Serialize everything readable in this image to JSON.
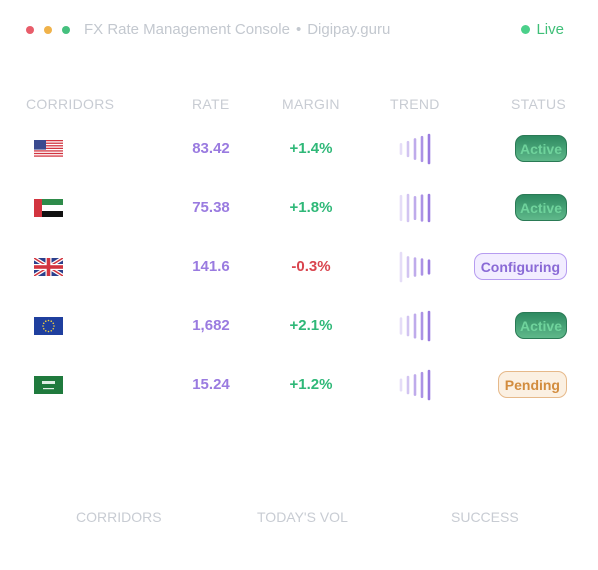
{
  "window": {
    "title": "FX Rate Management Console",
    "separator": "•",
    "domain": "Digipay.guru",
    "status": "Live"
  },
  "table": {
    "headers": {
      "corridors": "CORRIDORS",
      "rate": "RATE",
      "margin": "MARGIN",
      "trend": "TREND",
      "status": "STATUS"
    },
    "rows": [
      {
        "flag": "us-flag-icon",
        "rate": "83.42",
        "margin": "+1.4%",
        "margin_sign": "pos",
        "trend": [
          0.15,
          0.35,
          0.6,
          0.8,
          1.0
        ],
        "status": "Active"
      },
      {
        "flag": "uae-flag-icon",
        "rate": "75.38",
        "margin": "+1.8%",
        "margin_sign": "pos",
        "trend": [
          0.8,
          0.9,
          0.7,
          0.85,
          0.9
        ],
        "status": "Active"
      },
      {
        "flag": "uk-flag-icon",
        "rate": "141.6",
        "margin": "-0.3%",
        "margin_sign": "neg",
        "trend": [
          1.0,
          0.6,
          0.5,
          0.4,
          0.3
        ],
        "status": "Configuring"
      },
      {
        "flag": "eu-flag-icon",
        "rate": "1,682",
        "margin": "+2.1%",
        "margin_sign": "pos",
        "trend": [
          0.4,
          0.55,
          0.75,
          0.9,
          1.0
        ],
        "status": "Active"
      },
      {
        "flag": "saudi-flag-icon",
        "rate": "15.24",
        "margin": "+1.2%",
        "margin_sign": "pos",
        "trend": [
          0.2,
          0.45,
          0.6,
          0.8,
          1.0
        ],
        "status": "Pending"
      }
    ]
  },
  "footer": {
    "corridors": "CORRIDORS",
    "todays_vol": "TODAY'S VOL",
    "success": "SUCCESS"
  },
  "colors": {
    "accent": "#9a7be0",
    "positive": "#2fb878",
    "negative": "#d9444e",
    "live": "#3fbf78"
  }
}
